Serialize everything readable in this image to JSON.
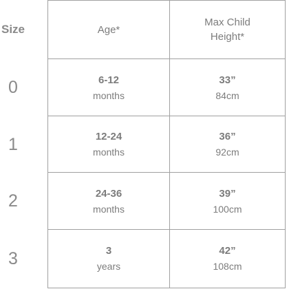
{
  "size_header": "Size",
  "headers": {
    "age": "Age*",
    "height_line1": "Max Child",
    "height_line2": "Height*"
  },
  "rows": [
    {
      "size": "0",
      "age_value": "6-12",
      "age_unit": "months",
      "height_in": "33”",
      "height_cm": "84cm"
    },
    {
      "size": "1",
      "age_value": "12-24",
      "age_unit": "months",
      "height_in": "36”",
      "height_cm": "92cm"
    },
    {
      "size": "2",
      "age_value": "24-36",
      "age_unit": "months",
      "height_in": "39”",
      "height_cm": "100cm"
    },
    {
      "size": "3",
      "age_value": "3",
      "age_unit": "years",
      "height_in": "42”",
      "height_cm": "108cm"
    }
  ]
}
